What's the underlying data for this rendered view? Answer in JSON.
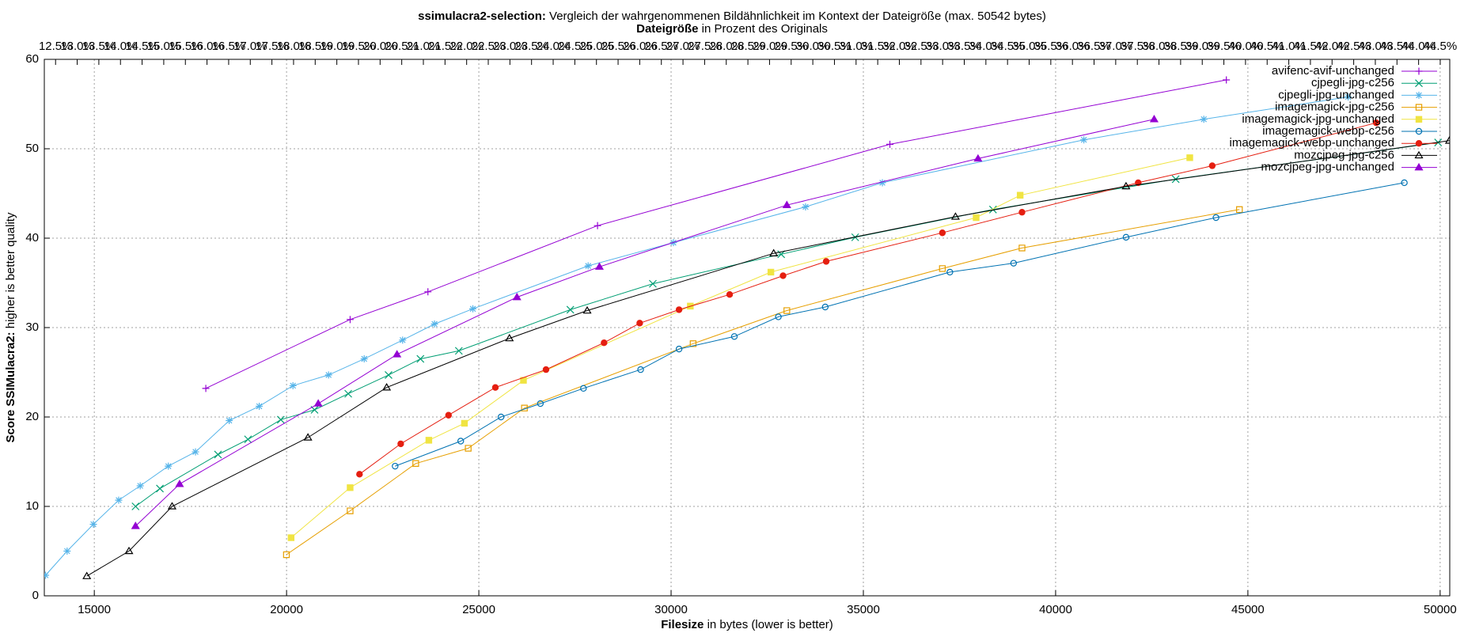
{
  "chart_data": {
    "type": "line",
    "title": {
      "bold": "ssimulacra2-selection:",
      "text": " Vergleich der wahrgenommenen Bildähnlichkeit im Kontext der Dateigröße (max. 50542 bytes)"
    },
    "x2label": {
      "bold": "Dateigröße",
      "text": " in Prozent des Originals"
    },
    "xlabel": {
      "bold": "Filesize",
      "text": " in bytes (lower is better)"
    },
    "ylabel": {
      "bold": "Score SSIMulacra2:",
      "text": " higher is better quality"
    },
    "xlim": [
      13700,
      50250
    ],
    "xticks": [
      15000,
      20000,
      25000,
      30000,
      35000,
      40000,
      45000,
      50000
    ],
    "ylim": [
      0,
      60
    ],
    "yticks": [
      0,
      10,
      20,
      30,
      40,
      50,
      60
    ],
    "x2lim": [
      12.24,
      44.72
    ],
    "x2ticks": [
      {
        "value": 12.5,
        "label": "12.5%"
      },
      {
        "value": 13.0,
        "label": "13.0%"
      },
      {
        "value": 13.5,
        "label": "13.5%"
      },
      {
        "value": 14.0,
        "label": "14.0%"
      },
      {
        "value": 14.5,
        "label": "14.5%"
      },
      {
        "value": 15.0,
        "label": "15.0%"
      },
      {
        "value": 15.5,
        "label": "15.5%"
      },
      {
        "value": 16.0,
        "label": "16.0%"
      },
      {
        "value": 16.5,
        "label": "16.5%"
      },
      {
        "value": 17.0,
        "label": "17.0%"
      },
      {
        "value": 17.5,
        "label": "17.5%"
      },
      {
        "value": 18.0,
        "label": "18.0%"
      },
      {
        "value": 18.5,
        "label": "18.5%"
      },
      {
        "value": 19.0,
        "label": "19.0%"
      },
      {
        "value": 19.5,
        "label": "19.5%"
      },
      {
        "value": 20.0,
        "label": "20.0%"
      },
      {
        "value": 20.5,
        "label": "20.5%"
      },
      {
        "value": 21.0,
        "label": "21.0%"
      },
      {
        "value": 21.5,
        "label": "21.5%"
      },
      {
        "value": 22.0,
        "label": "22.0%"
      },
      {
        "value": 22.5,
        "label": "22.5%"
      },
      {
        "value": 23.0,
        "label": "23.0%"
      },
      {
        "value": 23.5,
        "label": "23.5%"
      },
      {
        "value": 24.0,
        "label": "24.0%"
      },
      {
        "value": 24.5,
        "label": "24.5%"
      },
      {
        "value": 25.0,
        "label": "25.0%"
      },
      {
        "value": 25.5,
        "label": "25.5%"
      },
      {
        "value": 26.0,
        "label": "26.0%"
      },
      {
        "value": 26.5,
        "label": "26.5%"
      },
      {
        "value": 27.0,
        "label": "27.0%"
      },
      {
        "value": 27.5,
        "label": "27.5%"
      },
      {
        "value": 28.0,
        "label": "28.0%"
      },
      {
        "value": 28.5,
        "label": "28.5%"
      },
      {
        "value": 29.0,
        "label": "29.0%"
      },
      {
        "value": 29.5,
        "label": "29.5%"
      },
      {
        "value": 30.0,
        "label": "30.0%"
      },
      {
        "value": 30.5,
        "label": "30.5%"
      },
      {
        "value": 31.0,
        "label": "31.0%"
      },
      {
        "value": 31.5,
        "label": "31.5%"
      },
      {
        "value": 32.0,
        "label": "32.0%"
      },
      {
        "value": 32.5,
        "label": "32.5%"
      },
      {
        "value": 33.0,
        "label": "33.0%"
      },
      {
        "value": 33.5,
        "label": "33.5%"
      },
      {
        "value": 34.0,
        "label": "34.0%"
      },
      {
        "value": 34.5,
        "label": "34.5%"
      },
      {
        "value": 35.0,
        "label": "35.0%"
      },
      {
        "value": 35.5,
        "label": "35.5%"
      },
      {
        "value": 36.0,
        "label": "36.0%"
      },
      {
        "value": 36.5,
        "label": "36.5%"
      },
      {
        "value": 37.0,
        "label": "37.0%"
      },
      {
        "value": 37.5,
        "label": "37.5%"
      },
      {
        "value": 38.0,
        "label": "38.0%"
      },
      {
        "value": 38.5,
        "label": "38.5%"
      },
      {
        "value": 39.0,
        "label": "39.0%"
      },
      {
        "value": 39.5,
        "label": "39.5%"
      },
      {
        "value": 40.0,
        "label": "40.0%"
      },
      {
        "value": 40.5,
        "label": "40.5%"
      },
      {
        "value": 41.0,
        "label": "41.0%"
      },
      {
        "value": 41.5,
        "label": "41.5%"
      },
      {
        "value": 42.0,
        "label": "42.0%"
      },
      {
        "value": 42.5,
        "label": "42.5%"
      },
      {
        "value": 43.0,
        "label": "43.0%"
      },
      {
        "value": 43.5,
        "label": "43.5%"
      },
      {
        "value": 44.0,
        "label": "44.0%"
      },
      {
        "value": 44.5,
        "label": "44.5%"
      }
    ],
    "grid": true,
    "legend": "top right",
    "series": [
      {
        "name": "avifenc-avif-unchanged",
        "color": "#9400d3",
        "marker": "plus",
        "x": [
          17900,
          21653,
          23676,
          28087,
          35690,
          44440
        ],
        "values": [
          23.2,
          30.9,
          34.0,
          41.4,
          50.5,
          57.7
        ]
      },
      {
        "name": "cjpegli-jpg-c256",
        "color": "#009e73",
        "marker": "cross",
        "x": [
          16072,
          16706,
          18217,
          18997,
          19850,
          20727,
          21604,
          22652,
          23481,
          24480,
          27380,
          29525,
          32863,
          34788,
          38371,
          43123,
          49947
        ],
        "values": [
          10.0,
          12.0,
          15.8,
          17.5,
          19.7,
          20.8,
          22.6,
          24.7,
          26.5,
          27.4,
          32.0,
          34.9,
          38.2,
          40.1,
          43.2,
          46.6,
          50.7
        ]
      },
      {
        "name": "cjpegli-jpg-unchanged",
        "color": "#56b4e9",
        "marker": "star",
        "x": [
          13733,
          14293,
          14976,
          15634,
          16194,
          16925,
          17632,
          18509,
          19289,
          20166,
          21093,
          22019,
          23018,
          23847,
          24845,
          27843,
          30061,
          33497,
          35495,
          40735,
          43854,
          47607
        ],
        "values": [
          2.3,
          5.0,
          8.0,
          10.7,
          12.3,
          14.5,
          16.1,
          19.6,
          21.2,
          23.5,
          24.7,
          26.5,
          28.6,
          30.4,
          32.1,
          36.9,
          39.5,
          43.5,
          46.2,
          51.0,
          53.3,
          55.8
        ]
      },
      {
        "name": "imagemagick-jpg-c256",
        "color": "#e69f00",
        "marker": "square",
        "x": [
          19996,
          21653,
          23359,
          24724,
          26186,
          30573,
          33010,
          37055,
          39126,
          44780
        ],
        "values": [
          4.6,
          9.5,
          14.8,
          16.5,
          21.0,
          28.2,
          31.9,
          36.6,
          38.9,
          43.2
        ]
      },
      {
        "name": "imagemagick-jpg-unchanged",
        "color": "#f0e442",
        "marker": "square-filled",
        "x": [
          20118,
          21653,
          23700,
          24626,
          26161,
          30500,
          32595,
          37933,
          39078,
          43489
        ],
        "values": [
          6.5,
          12.1,
          17.4,
          19.3,
          24.1,
          32.4,
          36.2,
          42.3,
          44.8,
          49.0
        ]
      },
      {
        "name": "imagemagick-webp-c256",
        "color": "#0072b2",
        "marker": "circle",
        "x": [
          22823,
          24529,
          25577,
          26601,
          27721,
          29208,
          30207,
          31645,
          32790,
          34009,
          37250,
          38907,
          41831,
          44171,
          49069
        ],
        "values": [
          14.5,
          17.3,
          20.0,
          21.5,
          23.2,
          25.3,
          27.6,
          29.0,
          31.2,
          32.3,
          36.2,
          37.2,
          40.1,
          42.3,
          46.2
        ]
      },
      {
        "name": "imagemagick-webp-unchanged",
        "color": "#e51e10",
        "marker": "circle-filled",
        "x": [
          21897,
          22969,
          24212,
          25430,
          26747,
          28257,
          29184,
          30207,
          31523,
          32912,
          34033,
          37055,
          39126,
          42148,
          44073,
          48338
        ],
        "values": [
          13.6,
          17.0,
          20.2,
          23.3,
          25.3,
          28.3,
          30.5,
          32.0,
          33.7,
          35.8,
          37.4,
          40.6,
          42.9,
          46.2,
          48.1,
          52.9
        ]
      },
      {
        "name": "mozcjpeg-jpg-c256",
        "color": "#000000",
        "marker": "triangle",
        "x": [
          14805,
          15902,
          17023,
          20556,
          22603,
          25796,
          27818,
          32668,
          37396,
          41831,
          50239
        ],
        "values": [
          2.2,
          5.0,
          10.0,
          17.7,
          23.3,
          28.8,
          31.9,
          38.3,
          42.4,
          45.8,
          50.9
        ]
      },
      {
        "name": "mozcjpeg-jpg-unchanged",
        "color": "#9400d3",
        "marker": "triangle-filled",
        "x": [
          16072,
          17218,
          20824,
          22872,
          25991,
          28136,
          33010,
          37982,
          42562
        ],
        "values": [
          7.8,
          12.5,
          21.5,
          27.0,
          33.4,
          36.8,
          43.7,
          48.9,
          53.3
        ]
      }
    ]
  }
}
